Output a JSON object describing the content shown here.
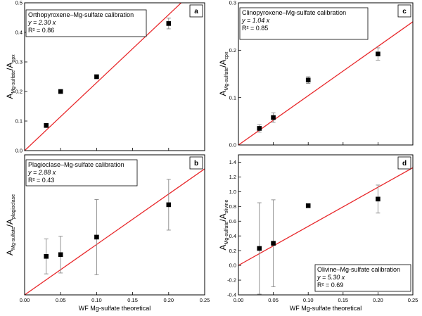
{
  "figure": {
    "xlabel": "WF Mg-sulfate theoretical",
    "colors": {
      "fit_line": "#e8282b",
      "points": "#000000",
      "error_bars": "#888888"
    }
  },
  "chart_data": [
    {
      "type": "scatter",
      "panel_label": "a",
      "annotation": {
        "title": "Orthopyroxene–Mg-sulfate calibration",
        "equation": "y = 2.30 x",
        "r2": "R² = 0.86",
        "placement": "top-left"
      },
      "ylabel": {
        "main": "A",
        "sub1": "Mg-sulfate",
        "sep": "/A",
        "sub2": "opx"
      },
      "xlabel": "",
      "xlim": [
        0,
        0.25
      ],
      "ylim": [
        0,
        0.5
      ],
      "xticks": [
        "0.00",
        "0.05",
        "0.10",
        "0.15",
        "0.20",
        "0.25"
      ],
      "show_xtick_labels": false,
      "yticks": [
        "0.0",
        "0.1",
        "0.2",
        "0.3",
        "0.4",
        "0.5"
      ],
      "fit_slope": 2.3,
      "x": [
        0.03,
        0.05,
        0.1,
        0.2
      ],
      "y": [
        0.085,
        0.2,
        0.25,
        0.43
      ],
      "yerr": [
        0.006,
        0.006,
        0.006,
        0.018
      ]
    },
    {
      "type": "scatter",
      "panel_label": "c",
      "annotation": {
        "title": "Clinopyroxene–Mg-sulfate calibration",
        "equation": "y = 1.04 x",
        "r2": "R² = 0.85",
        "placement": "top-left"
      },
      "ylabel": {
        "main": "A",
        "sub1": "Mg-sulfate",
        "sep": "/A",
        "sub2": "cpx"
      },
      "xlabel": "",
      "xlim": [
        0,
        0.25
      ],
      "ylim": [
        0,
        0.3
      ],
      "xticks": [
        "0.00",
        "0.05",
        "0.10",
        "0.15",
        "0.20",
        "0.25"
      ],
      "show_xtick_labels": false,
      "yticks": [
        "0.0",
        "0.1",
        "0.2",
        "0.3"
      ],
      "fit_slope": 1.04,
      "x": [
        0.03,
        0.05,
        0.1,
        0.2
      ],
      "y": [
        0.035,
        0.058,
        0.137,
        0.192
      ],
      "yerr": [
        0.008,
        0.01,
        0.007,
        0.013
      ]
    },
    {
      "type": "scatter",
      "panel_label": "b",
      "annotation": {
        "title": "Plagioclase–Mg-sulfate calibration",
        "equation": "y = 2.88 x",
        "r2": "R² = 0.43",
        "placement": "top-left"
      },
      "ylabel": {
        "main": "A",
        "sub1": "Mg-sulfate",
        "sep": "/A",
        "sub2": "plagioclase"
      },
      "xlabel": "WF Mg-sulfate theoretical",
      "xlim": [
        0,
        0.25
      ],
      "ylim": [
        0,
        0.8
      ],
      "xticks": [
        "0.00",
        "0.05",
        "0.10",
        "0.15",
        "0.20",
        "0.25"
      ],
      "show_xtick_labels": true,
      "yticks": [],
      "fit_slope": 2.88,
      "x": [
        0.03,
        0.05,
        0.1,
        0.2
      ],
      "y": [
        0.22,
        0.23,
        0.33,
        0.515
      ],
      "yerr": [
        0.1,
        0.105,
        0.215,
        0.145
      ]
    },
    {
      "type": "scatter",
      "panel_label": "d",
      "annotation": {
        "title": "Olivine–Mg-sulfate calibration",
        "equation": "y = 5.30 x",
        "r2": "R² = 0.69",
        "placement": "bottom-right"
      },
      "ylabel": {
        "main": "A",
        "sub1": "Mg-sulfate",
        "sep": "/A",
        "sub2": "olivine"
      },
      "xlabel": "WF Mg-sulfate theoretical",
      "xlim": [
        0,
        0.25
      ],
      "ylim": [
        -0.4,
        1.5
      ],
      "xticks": [
        "0.00",
        "0.05",
        "0.10",
        "0.15",
        "0.20",
        "0.25"
      ],
      "show_xtick_labels": true,
      "yticks": [
        "-0.4",
        "-0.2",
        "0.0",
        "0.2",
        "0.4",
        "0.6",
        "0.8",
        "1.0",
        "1.2",
        "1.4"
      ],
      "fit_slope": 5.3,
      "x": [
        0.03,
        0.05,
        0.1,
        0.2
      ],
      "y": [
        0.23,
        0.3,
        0.81,
        0.9
      ],
      "yerr": [
        0.62,
        0.59,
        0.02,
        0.19
      ]
    }
  ]
}
